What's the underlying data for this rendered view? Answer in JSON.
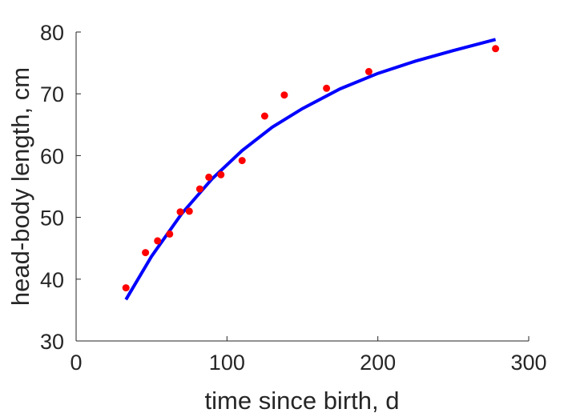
{
  "chart_data": {
    "type": "scatter",
    "title": "",
    "xlabel": "time since birth, d",
    "ylabel": "head-body length, cm",
    "xlim": [
      0,
      300
    ],
    "ylim": [
      30,
      80
    ],
    "xticks": [
      0,
      100,
      200,
      300
    ],
    "yticks": [
      30,
      40,
      50,
      60,
      70,
      80
    ],
    "grid": false,
    "legend": "none",
    "series": [
      {
        "type": "scatter",
        "color": "#ff0000",
        "x": [
          33,
          46,
          54,
          62,
          69,
          75,
          82,
          88,
          96,
          110,
          125,
          138,
          166,
          194,
          278
        ],
        "y": [
          38.6,
          44.3,
          46.2,
          47.3,
          50.9,
          51.0,
          54.6,
          56.5,
          56.9,
          59.2,
          66.4,
          69.8,
          70.9,
          73.6,
          77.3
        ]
      },
      {
        "type": "line",
        "color": "#0000ff",
        "x": [
          33,
          50,
          70,
          90,
          110,
          130,
          150,
          175,
          200,
          225,
          250,
          278
        ],
        "y": [
          36.7,
          43.7,
          50.6,
          56.2,
          60.8,
          64.6,
          67.6,
          70.8,
          73.3,
          75.3,
          77.0,
          78.8
        ]
      }
    ]
  }
}
